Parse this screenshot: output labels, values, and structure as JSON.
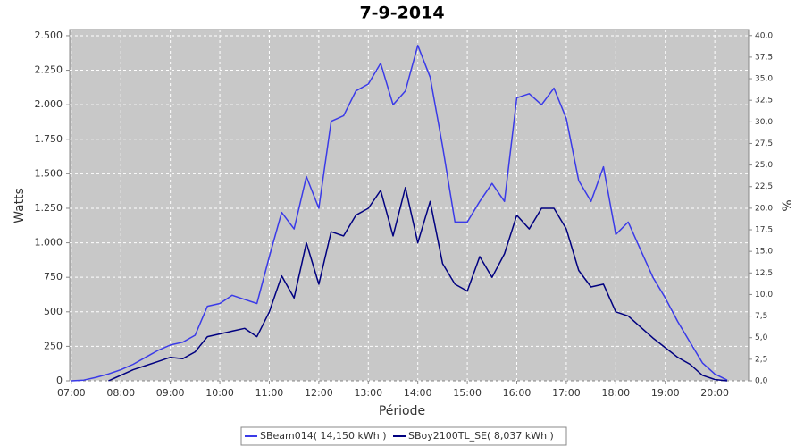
{
  "chart_data": {
    "type": "line",
    "title": "7-9-2014",
    "xlabel": "Période",
    "ylabel": "Watts",
    "y2label": "%",
    "x": [
      "07:00",
      "07:15",
      "07:30",
      "07:45",
      "08:00",
      "08:15",
      "08:30",
      "08:45",
      "09:00",
      "09:15",
      "09:30",
      "09:45",
      "10:00",
      "10:15",
      "10:30",
      "10:45",
      "11:00",
      "11:15",
      "11:30",
      "11:45",
      "12:00",
      "12:15",
      "12:30",
      "12:45",
      "13:00",
      "13:15",
      "13:30",
      "13:45",
      "14:00",
      "14:15",
      "14:30",
      "14:45",
      "15:00",
      "15:15",
      "15:30",
      "15:45",
      "16:00",
      "16:15",
      "16:30",
      "16:45",
      "17:00",
      "17:15",
      "17:30",
      "17:45",
      "18:00",
      "18:15",
      "18:30",
      "18:45",
      "19:00",
      "19:15",
      "19:30",
      "19:45",
      "20:00",
      "20:15"
    ],
    "series": [
      {
        "name": "SBeam014( 14,150 kWh )",
        "color": "#3a3ae8",
        "values": [
          0,
          5,
          25,
          50,
          80,
          120,
          170,
          220,
          260,
          280,
          330,
          540,
          560,
          620,
          590,
          560,
          900,
          1220,
          1100,
          1480,
          1250,
          1880,
          1920,
          2100,
          2150,
          2300,
          2000,
          2100,
          2430,
          2200,
          1700,
          1150,
          1150,
          1300,
          1430,
          1300,
          2050,
          2080,
          2000,
          2120,
          1900,
          1450,
          1300,
          1550,
          1060,
          1150,
          950,
          750,
          600,
          430,
          280,
          130,
          50,
          5
        ]
      },
      {
        "name": "SBoy2100TL_SE( 8,037 kWh )",
        "color": "#000080",
        "values": [
          null,
          null,
          null,
          0,
          40,
          80,
          110,
          140,
          170,
          160,
          210,
          320,
          340,
          360,
          380,
          320,
          500,
          760,
          600,
          1000,
          700,
          1080,
          1050,
          1200,
          1250,
          1380,
          1050,
          1400,
          1000,
          1300,
          850,
          700,
          650,
          900,
          750,
          920,
          1200,
          1100,
          1250,
          1250,
          1100,
          800,
          680,
          700,
          500,
          470,
          390,
          310,
          240,
          170,
          120,
          40,
          10,
          0
        ]
      }
    ],
    "xlim": [
      "06:58",
      "20:41"
    ],
    "xticks": [
      "07:00",
      "08:00",
      "09:00",
      "10:00",
      "11:00",
      "12:00",
      "13:00",
      "14:00",
      "15:00",
      "16:00",
      "17:00",
      "18:00",
      "19:00",
      "20:00"
    ],
    "ylim": [
      0,
      2545
    ],
    "yticks": [
      {
        "value": 0,
        "label": "0"
      },
      {
        "value": 250,
        "label": "250"
      },
      {
        "value": 500,
        "label": "500"
      },
      {
        "value": 750,
        "label": "750"
      },
      {
        "value": 1000,
        "label": "1.000"
      },
      {
        "value": 1250,
        "label": "1.250"
      },
      {
        "value": 1500,
        "label": "1.500"
      },
      {
        "value": 1750,
        "label": "1.750"
      },
      {
        "value": 2000,
        "label": "2.000"
      },
      {
        "value": 2250,
        "label": "2.250"
      },
      {
        "value": 2500,
        "label": "2.500"
      }
    ],
    "y2lim": [
      0,
      40.7
    ],
    "y2ticks": [
      {
        "value": 0,
        "label": "0,0"
      },
      {
        "value": 2.5,
        "label": "2,5"
      },
      {
        "value": 5,
        "label": "5,0"
      },
      {
        "value": 7.5,
        "label": "7,5"
      },
      {
        "value": 10,
        "label": "10,0"
      },
      {
        "value": 12.5,
        "label": "12,5"
      },
      {
        "value": 15,
        "label": "15,0"
      },
      {
        "value": 17.5,
        "label": "17,5"
      },
      {
        "value": 20,
        "label": "20,0"
      },
      {
        "value": 22.5,
        "label": "22,5"
      },
      {
        "value": 25,
        "label": "25,0"
      },
      {
        "value": 27.5,
        "label": "27,5"
      },
      {
        "value": 30,
        "label": "30,0"
      },
      {
        "value": 32.5,
        "label": "32,5"
      },
      {
        "value": 35,
        "label": "35,0"
      },
      {
        "value": 37.5,
        "label": "37,5"
      },
      {
        "value": 40,
        "label": "40,0"
      }
    ],
    "grid": true
  }
}
